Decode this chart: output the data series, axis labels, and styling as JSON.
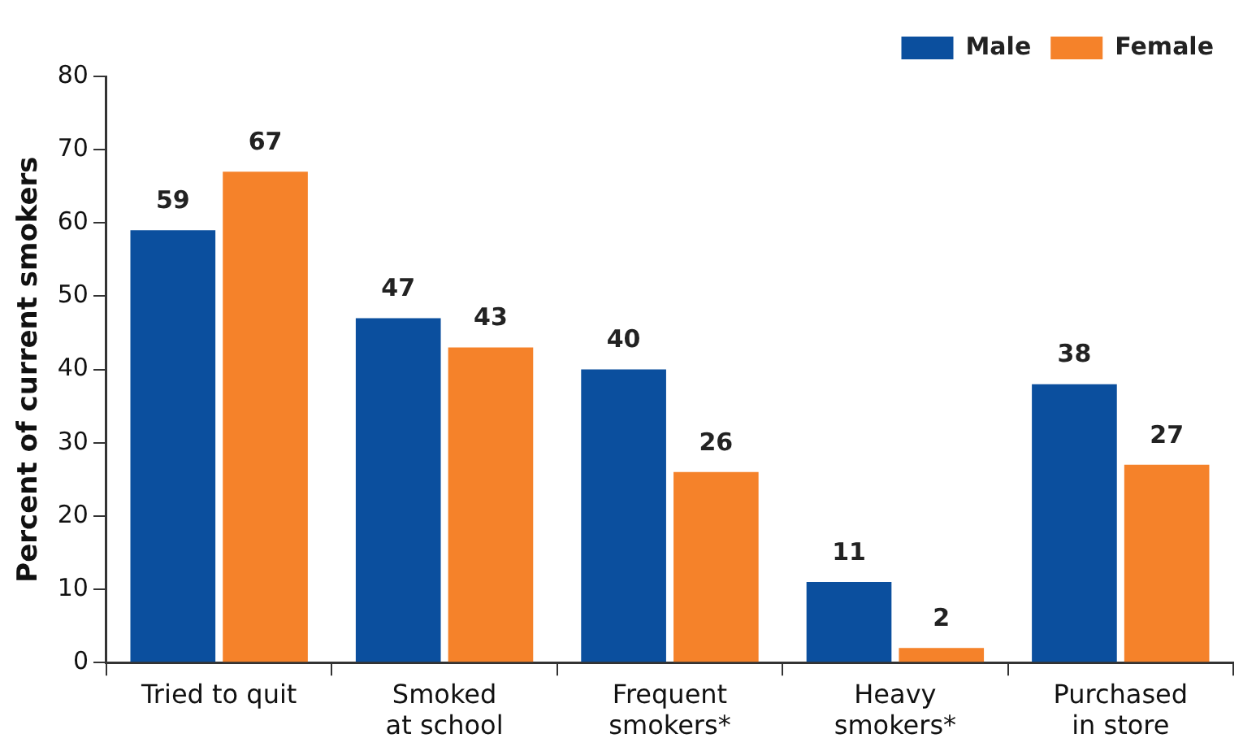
{
  "chart_data": {
    "type": "bar",
    "ylabel": "Percent of current smokers",
    "categories": [
      "Tried to quit",
      "Smoked\nat school",
      "Frequent\nsmokers*",
      "Heavy\nsmokers*",
      "Purchased\nin store"
    ],
    "series": [
      {
        "name": "Male",
        "color": "#0b4f9e",
        "values": [
          59,
          47,
          40,
          11,
          38
        ]
      },
      {
        "name": "Female",
        "color": "#f5822a",
        "values": [
          67,
          43,
          26,
          2,
          27
        ]
      }
    ],
    "ylim": [
      0,
      80
    ],
    "yticks": [
      0,
      10,
      20,
      30,
      40,
      50,
      60,
      70,
      80
    ],
    "grid": false,
    "legend": "top right",
    "data_labels": true
  }
}
